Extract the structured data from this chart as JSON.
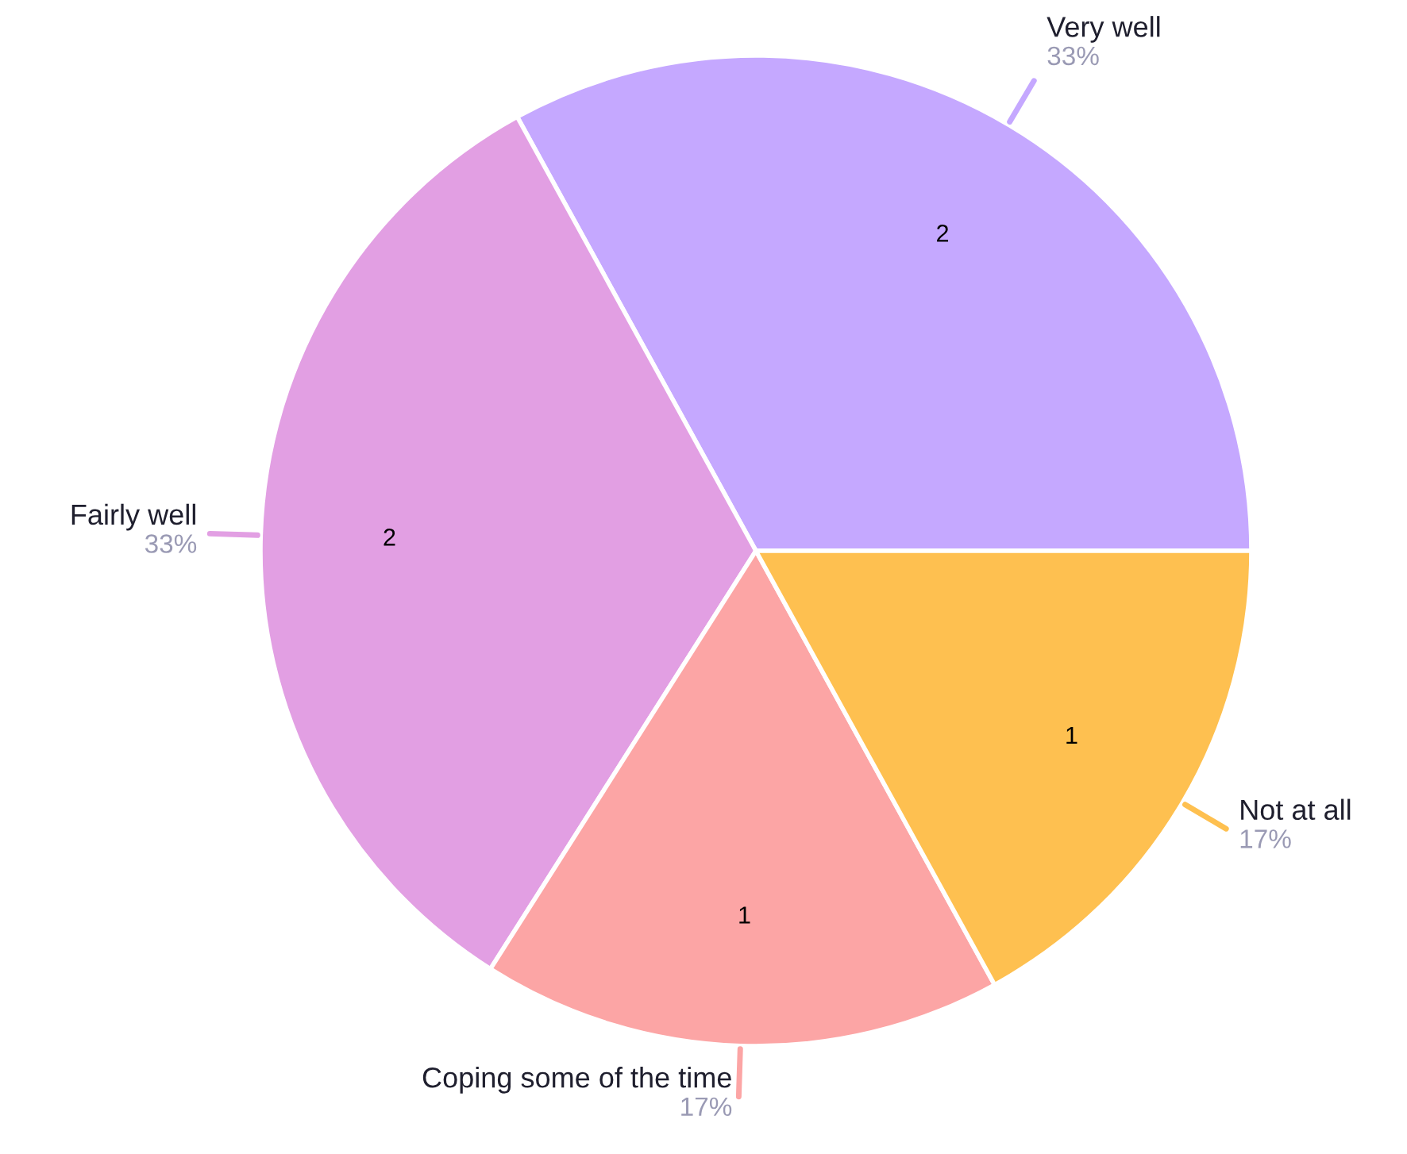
{
  "chart_data": {
    "type": "pie",
    "categories": [
      "Very well",
      "Fairly well",
      "Coping some of the time",
      "Not at all"
    ],
    "values": [
      33,
      33,
      17,
      17
    ],
    "value_labels": [
      "33%",
      "33%",
      "17%",
      "17%"
    ],
    "colors": [
      "#c5a8ff",
      "#e29fe3",
      "#fca5a5",
      "#fec050"
    ],
    "annotations": [
      {
        "text": "2",
        "x": "Very well"
      },
      {
        "text": "2",
        "x": "Fairly well"
      },
      {
        "text": "1",
        "x": "Coping some of the time"
      },
      {
        "text": "1",
        "x": "Not at all"
      }
    ]
  }
}
